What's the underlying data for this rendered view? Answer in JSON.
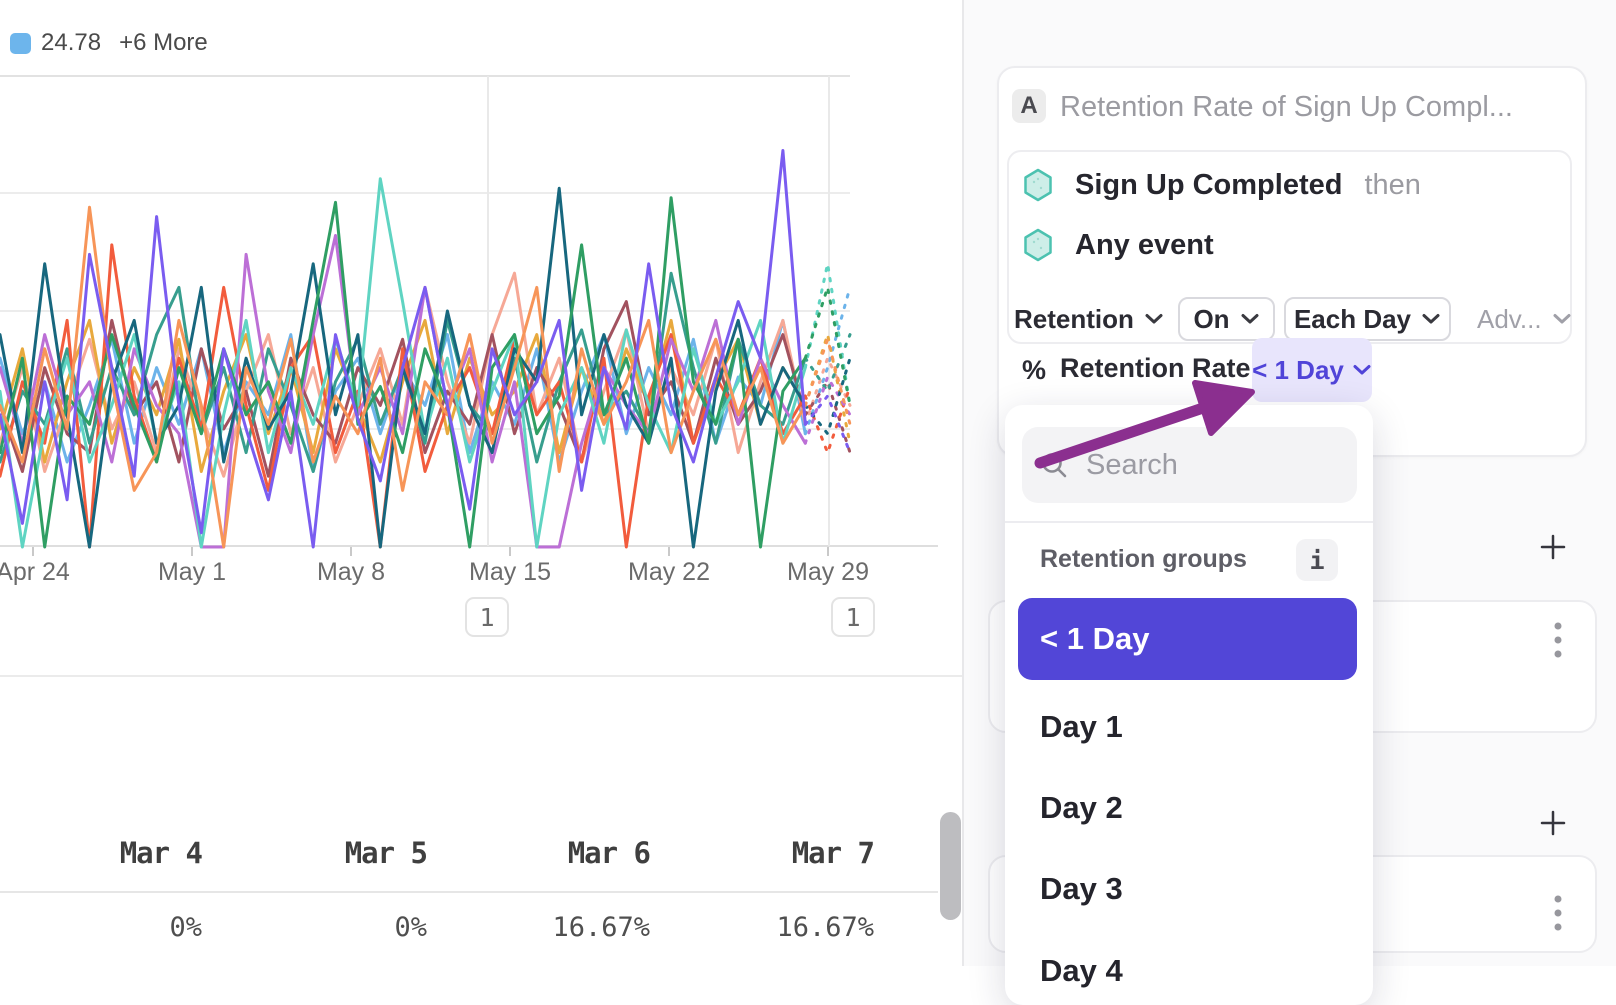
{
  "legend": {
    "swatch_color": "#6db5ec",
    "label": "24.78",
    "more_label": "+6 More"
  },
  "chart": {
    "x_labels": [
      "Apr 24",
      "May 1",
      "May 8",
      "May 15",
      "May 22",
      "May 29"
    ],
    "annotation_badges": [
      "1",
      "1"
    ]
  },
  "chart_data": [
    {
      "type": "line",
      "title": "",
      "xlabel": "",
      "ylabel": "",
      "x_tick_labels": [
        "Apr 24",
        "May 1",
        "May 8",
        "May 15",
        "May 22",
        "May 29"
      ],
      "ylim": [
        0,
        100
      ],
      "grid": true,
      "legend_position": "top-left",
      "legend_visible_entries": [
        "24.78",
        "+6 More"
      ],
      "dashed_tail_from_index": 36,
      "series": [
        {
          "label": "24.78",
          "color": "#6cb3ea",
          "values": [
            40,
            24,
            35,
            18,
            30,
            44,
            22,
            38,
            26,
            42,
            20,
            35,
            28,
            45,
            16,
            33,
            40,
            24,
            38,
            30,
            45,
            20,
            35,
            26,
            42,
            18,
            33,
            45,
            24,
            38,
            28,
            44,
            22,
            36,
            30,
            48,
            24,
            38,
            55
          ]
        },
        {
          "label": "",
          "color": "#f6a896",
          "values": [
            22,
            38,
            16,
            30,
            44,
            25,
            35,
            20,
            42,
            28,
            15,
            33,
            45,
            24,
            38,
            18,
            30,
            42,
            26,
            55,
            35,
            22,
            45,
            58,
            28,
            40,
            18,
            33,
            46,
            24,
            38,
            28,
            44,
            20,
            35,
            48,
            26,
            40,
            30
          ]
        },
        {
          "label": "",
          "color": "#e8a93d",
          "values": [
            25,
            42,
            18,
            35,
            48,
            22,
            38,
            28,
            44,
            16,
            33,
            45,
            24,
            38,
            20,
            42,
            30,
            18,
            35,
            48,
            24,
            40,
            28,
            33,
            45,
            20,
            38,
            26,
            42,
            30,
            48,
            22,
            35,
            44,
            26,
            38,
            30,
            45,
            22
          ]
        },
        {
          "label": "",
          "color": "#a2525f",
          "values": [
            30,
            16,
            38,
            24,
            20,
            48,
            28,
            35,
            18,
            42,
            25,
            33,
            15,
            40,
            28,
            22,
            38,
            30,
            44,
            20,
            33,
            26,
            45,
            24,
            38,
            30,
            18,
            42,
            52,
            28,
            35,
            22,
            40,
            26,
            33,
            45,
            28,
            35,
            20
          ]
        },
        {
          "label": "",
          "color": "#379e8e",
          "values": [
            18,
            33,
            26,
            42,
            22,
            38,
            28,
            45,
            55,
            24,
            38,
            20,
            42,
            30,
            16,
            35,
            44,
            26,
            38,
            22,
            48,
            30,
            24,
            40,
            18,
            35,
            46,
            28,
            33,
            24,
            58,
            38,
            22,
            44,
            30,
            26,
            40,
            33,
            45
          ]
        },
        {
          "label": "",
          "color": "#f25c3d",
          "values": [
            15,
            35,
            22,
            48,
            0,
            64,
            32,
            18,
            40,
            25,
            55,
            30,
            12,
            38,
            45,
            20,
            33,
            0,
            42,
            16,
            30,
            38,
            24,
            44,
            28,
            35,
            18,
            40,
            0,
            32,
            45,
            22,
            36,
            28,
            40,
            24,
            32,
            20,
            34
          ]
        },
        {
          "label": "",
          "color": "#bc6fd6",
          "values": [
            38,
            22,
            45,
            28,
            35,
            18,
            42,
            30,
            24,
            0,
            0,
            62,
            33,
            20,
            45,
            66,
            28,
            38,
            24,
            55,
            30,
            42,
            18,
            35,
            0,
            0,
            22,
            38,
            30,
            24,
            44,
            33,
            48,
            26,
            40,
            30,
            22,
            36,
            28
          ]
        },
        {
          "label": "",
          "color": "#5fd4c2",
          "values": [
            33,
            0,
            25,
            40,
            18,
            30,
            45,
            22,
            35,
            0,
            28,
            48,
            20,
            38,
            26,
            44,
            30,
            78,
            52,
            24,
            40,
            18,
            33,
            45,
            0,
            28,
            38,
            22,
            46,
            30,
            20,
            42,
            26,
            35,
            48,
            22,
            38,
            60,
            30
          ]
        },
        {
          "label": "",
          "color": "#17677e",
          "values": [
            45,
            20,
            60,
            28,
            0,
            35,
            48,
            22,
            30,
            55,
            18,
            40,
            25,
            33,
            60,
            28,
            45,
            0,
            38,
            24,
            50,
            30,
            20,
            42,
            35,
            76,
            28,
            45,
            30,
            22,
            40,
            0,
            33,
            48,
            26,
            38,
            30,
            24,
            40
          ]
        },
        {
          "label": "",
          "color": "#2f9e63",
          "values": [
            20,
            40,
            0,
            32,
            26,
            45,
            30,
            18,
            38,
            24,
            42,
            28,
            35,
            22,
            48,
            73,
            26,
            34,
            20,
            42,
            30,
            0,
            38,
            45,
            24,
            32,
            64,
            28,
            40,
            22,
            74,
            35,
            26,
            44,
            0,
            33,
            40,
            55,
            30
          ]
        },
        {
          "label": "",
          "color": "#f79558",
          "values": [
            30,
            18,
            42,
            25,
            72,
            35,
            12,
            20,
            48,
            30,
            0,
            38,
            26,
            44,
            18,
            32,
            24,
            40,
            12,
            35,
            28,
            45,
            22,
            38,
            55,
            16,
            42,
            26,
            35,
            48,
            20,
            33,
            44,
            28,
            38,
            22,
            30,
            44,
            26
          ]
        },
        {
          "label": "",
          "color": "#7a5cf0",
          "values": [
            28,
            5,
            35,
            10,
            62,
            38,
            15,
            70,
            30,
            3,
            42,
            25,
            10,
            33,
            0,
            45,
            27,
            14,
            38,
            55,
            30,
            8,
            42,
            28,
            35,
            48,
            12,
            38,
            25,
            60,
            30,
            18,
            36,
            52,
            40,
            84,
            26,
            32,
            20
          ]
        }
      ]
    },
    {
      "type": "table",
      "columns": [
        "Mar 4",
        "Mar 5",
        "Mar 6",
        "Mar 7"
      ],
      "rows": [
        [
          "0%",
          "0%",
          "16.67%",
          "16.67%"
        ]
      ]
    }
  ],
  "panel": {
    "card": {
      "badge": "A",
      "title": "Retention Rate of Sign Up Compl...",
      "event1": "Sign Up Completed",
      "event1_suffix": "then",
      "event2": "Any event",
      "controls": [
        {
          "label": "Retention",
          "variant": "plain"
        },
        {
          "label": "On",
          "variant": "outlined"
        },
        {
          "label": "Each Day",
          "variant": "outlined"
        },
        {
          "label": "Adv...",
          "variant": "muted"
        }
      ],
      "metric_symbol": "%",
      "metric_label": "Retention Rate",
      "metric_value": "< 1 Day"
    },
    "dropdown": {
      "search_placeholder": "Search",
      "group_label": "Retention groups",
      "info_glyph": "i",
      "items": [
        {
          "label": "< 1 Day",
          "selected": true
        },
        {
          "label": "Day 1",
          "selected": false
        },
        {
          "label": "Day 2",
          "selected": false
        },
        {
          "label": "Day 3",
          "selected": false
        },
        {
          "label": "Day 4",
          "selected": false
        }
      ]
    }
  },
  "colors": {
    "accent_purple": "#5246d7",
    "accent_lavender": "#e8e5fc",
    "accent_text_purple": "#5044d8",
    "annotation_arrow": "#8b2f8f",
    "legend_swatch": "#6db5ec"
  }
}
